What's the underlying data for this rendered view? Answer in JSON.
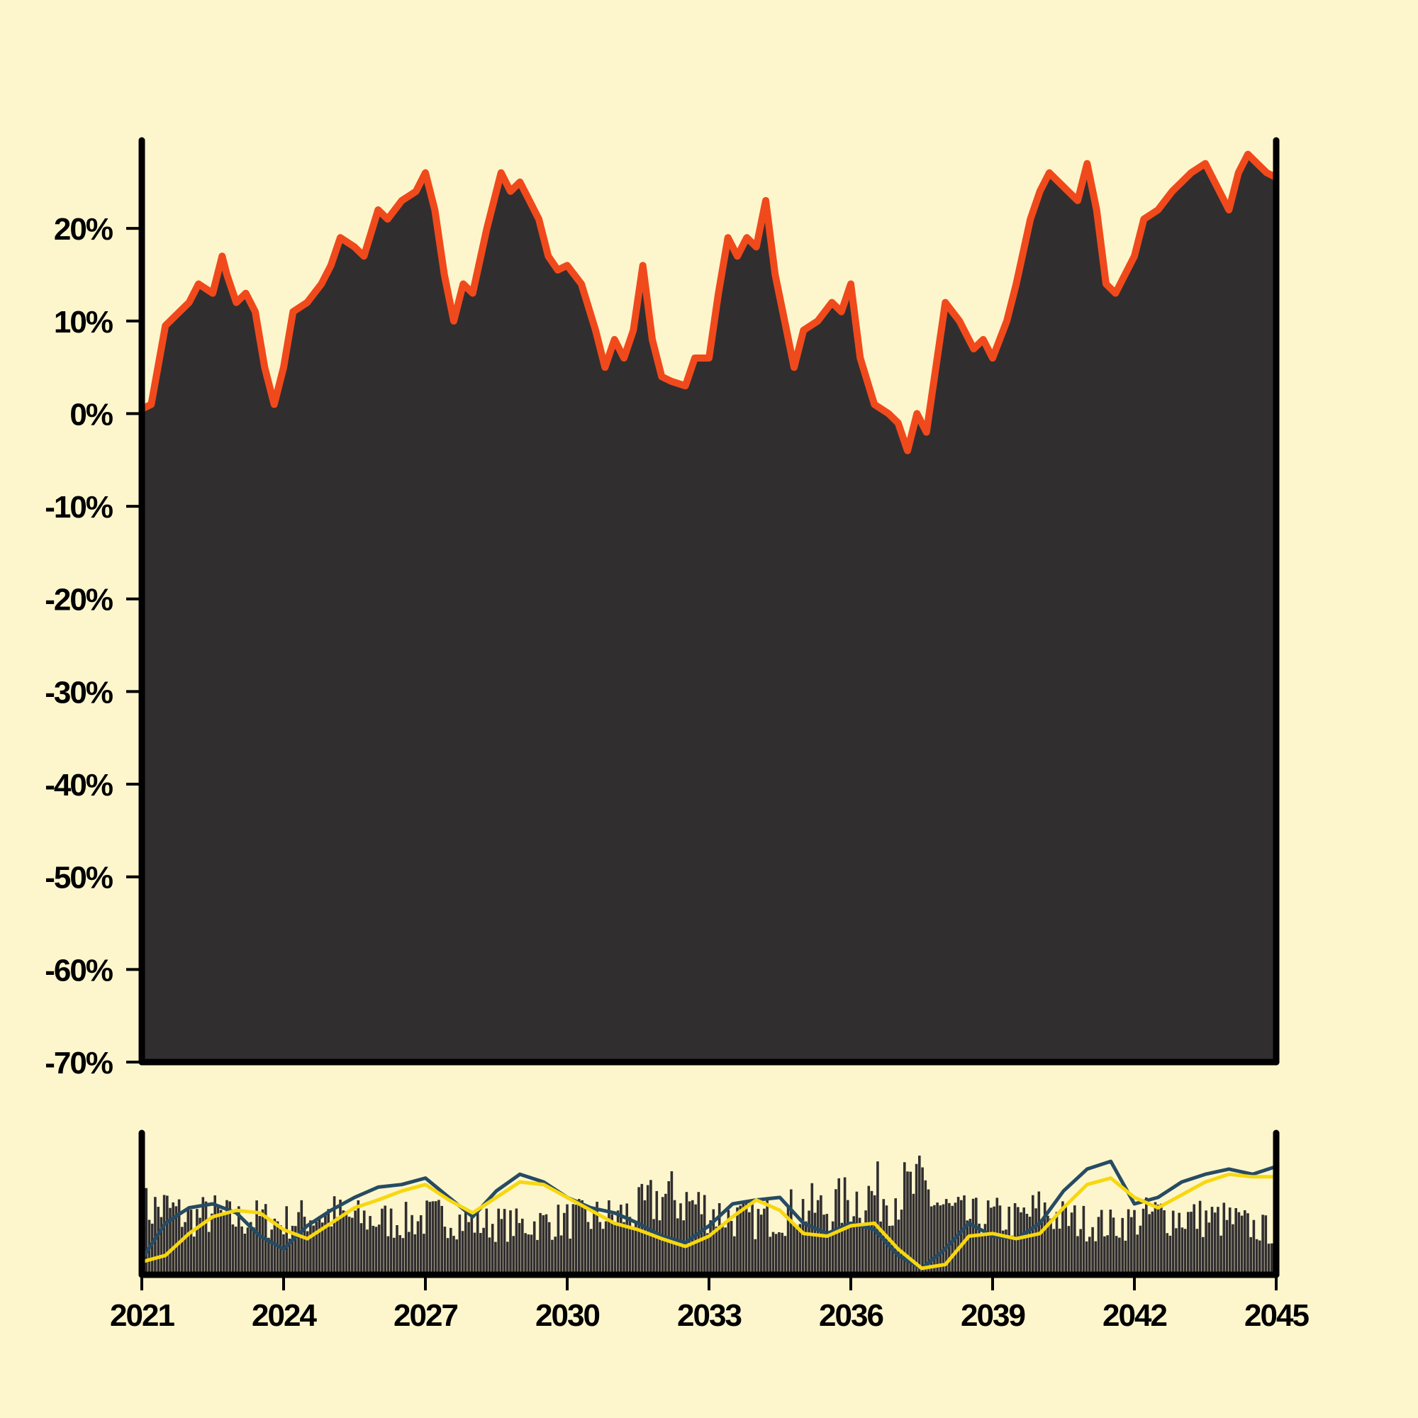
{
  "colors": {
    "background": "#fdf6cc",
    "area_fill": "#312e30",
    "area_edge": "#f04a1c",
    "axis": "#000000",
    "volume_bars": "#312e30",
    "line_fast": "#264b63",
    "line_slow": "#f7d711"
  },
  "chart_data": [
    {
      "type": "area",
      "title": "",
      "xlabel": "",
      "ylabel": "",
      "x_range": [
        2021,
        2045
      ],
      "ylim": [
        -70,
        29.5
      ],
      "y_ticks": [
        -70,
        -60,
        -50,
        -40,
        -30,
        -20,
        -10,
        0,
        10,
        20
      ],
      "y_tick_labels": [
        "-70%",
        "-60%",
        "-50%",
        "-40%",
        "-30%",
        "-20%",
        "-10%",
        "0%",
        "10%",
        "20%"
      ],
      "grid": false,
      "series": [
        {
          "x": [
            2021.0,
            2021.2,
            2021.5,
            2021.8,
            2022.0,
            2022.2,
            2022.5,
            2022.7,
            2022.8,
            2023.0,
            2023.2,
            2023.4,
            2023.6,
            2023.8,
            2024.0,
            2024.2,
            2024.5,
            2024.8,
            2025.0,
            2025.2,
            2025.5,
            2025.7,
            2026.0,
            2026.2,
            2026.5,
            2026.8,
            2027.0,
            2027.2,
            2027.4,
            2027.6,
            2027.8,
            2028.0,
            2028.3,
            2028.6,
            2028.8,
            2029.0,
            2029.2,
            2029.4,
            2029.6,
            2029.8,
            2030.0,
            2030.3,
            2030.6,
            2030.8,
            2031.0,
            2031.2,
            2031.4,
            2031.6,
            2031.8,
            2032.0,
            2032.2,
            2032.5,
            2032.7,
            2033.0,
            2033.2,
            2033.4,
            2033.6,
            2033.8,
            2034.0,
            2034.2,
            2034.4,
            2034.6,
            2034.8,
            2035.0,
            2035.3,
            2035.6,
            2035.8,
            2036.0,
            2036.2,
            2036.5,
            2036.8,
            2037.0,
            2037.2,
            2037.4,
            2037.6,
            2037.8,
            2038.0,
            2038.3,
            2038.6,
            2038.8,
            2039.0,
            2039.3,
            2039.5,
            2039.8,
            2040.0,
            2040.2,
            2040.4,
            2040.6,
            2040.8,
            2041.0,
            2041.2,
            2041.4,
            2041.6,
            2041.8,
            2042.0,
            2042.2,
            2042.5,
            2042.8,
            2043.0,
            2043.2,
            2043.5,
            2043.8,
            2044.0,
            2044.2,
            2044.4,
            2044.6,
            2044.8,
            2045.0
          ],
          "values": [
            0.5,
            1,
            9.5,
            11,
            12,
            14,
            13,
            17,
            15,
            12,
            13,
            11,
            5,
            1,
            5,
            11,
            12,
            14,
            16,
            19,
            18,
            17,
            22,
            21,
            23,
            24,
            26,
            22,
            15,
            10,
            14,
            13,
            20,
            26,
            24,
            25,
            23,
            21,
            17,
            15.5,
            16,
            14,
            9,
            5,
            8,
            6,
            9,
            16,
            8,
            4,
            3.5,
            3,
            6,
            6,
            13,
            19,
            17,
            19,
            18,
            23,
            15,
            10,
            5,
            9,
            10,
            12,
            11,
            14,
            6,
            1,
            0,
            -1,
            -4,
            0,
            -2,
            5,
            12,
            10,
            7,
            8,
            6,
            10,
            14,
            21,
            24,
            26,
            25,
            24,
            23,
            27,
            22,
            14,
            13,
            15,
            17,
            21,
            22,
            24,
            25,
            26,
            27,
            24,
            22,
            26,
            28,
            27,
            26,
            25.5
          ]
        }
      ]
    },
    {
      "type": "bar",
      "title": "",
      "x_range": [
        2021,
        2045
      ],
      "x_ticks": [
        2021,
        2024,
        2027,
        2030,
        2033,
        2036,
        2039,
        2042,
        2045
      ],
      "x_tick_labels": [
        "2021",
        "2024",
        "2027",
        "2030",
        "2033",
        "2036",
        "2039",
        "2042",
        "2045"
      ],
      "grid": false,
      "bars": {
        "x": [
          2021.0,
          2021.5,
          2022.0,
          2022.5,
          2023.0,
          2023.5,
          2024.0,
          2024.5,
          2025.0,
          2025.5,
          2026.0,
          2026.5,
          2027.0,
          2027.5,
          2028.0,
          2028.5,
          2029.0,
          2029.5,
          2030.0,
          2030.5,
          2031.0,
          2031.5,
          2032.0,
          2032.5,
          2033.0,
          2033.5,
          2034.0,
          2034.5,
          2035.0,
          2035.5,
          2036.0,
          2036.5,
          2037.0,
          2037.5,
          2038.0,
          2038.5,
          2039.0,
          2039.5,
          2040.0,
          2040.5,
          2041.0,
          2041.5,
          2042.0,
          2042.5,
          2043.0,
          2043.5,
          2044.0,
          2044.5,
          2045.0
        ],
        "values": [
          0.6,
          0.62,
          0.5,
          0.55,
          0.48,
          0.5,
          0.45,
          0.52,
          0.55,
          0.5,
          0.48,
          0.46,
          0.5,
          0.52,
          0.45,
          0.44,
          0.42,
          0.45,
          0.48,
          0.5,
          0.52,
          0.58,
          0.75,
          0.7,
          0.6,
          0.5,
          0.48,
          0.55,
          0.62,
          0.6,
          0.72,
          0.78,
          0.8,
          0.85,
          0.6,
          0.5,
          0.52,
          0.48,
          0.6,
          0.5,
          0.45,
          0.42,
          0.48,
          0.55,
          0.52,
          0.5,
          0.48,
          0.4,
          0.35
        ]
      },
      "series": [
        {
          "x": [
            2021.0,
            2021.5,
            2022.0,
            2022.5,
            2023.0,
            2023.5,
            2024.0,
            2024.5,
            2025.0,
            2025.5,
            2026.0,
            2026.5,
            2027.0,
            2027.5,
            2028.0,
            2028.5,
            2029.0,
            2029.5,
            2030.0,
            2030.5,
            2031.0,
            2031.5,
            2032.0,
            2032.5,
            2033.0,
            2033.5,
            2034.0,
            2034.5,
            2035.0,
            2035.5,
            2036.0,
            2036.5,
            2037.0,
            2037.5,
            2038.0,
            2038.5,
            2039.0,
            2039.5,
            2040.0,
            2040.5,
            2041.0,
            2041.5,
            2042.0,
            2042.5,
            2043.0,
            2043.5,
            2044.0,
            2044.5,
            2045.0
          ],
          "values": [
            0.02,
            0.3,
            0.42,
            0.45,
            0.38,
            0.2,
            0.1,
            0.28,
            0.4,
            0.5,
            0.58,
            0.6,
            0.65,
            0.5,
            0.35,
            0.55,
            0.68,
            0.62,
            0.5,
            0.42,
            0.38,
            0.3,
            0.2,
            0.15,
            0.28,
            0.45,
            0.48,
            0.5,
            0.3,
            0.22,
            0.3,
            0.25,
            0.05,
            -0.05,
            0.1,
            0.3,
            0.2,
            0.18,
            0.3,
            0.55,
            0.72,
            0.78,
            0.45,
            0.5,
            0.62,
            0.68,
            0.72,
            0.68,
            0.74
          ]
        },
        {
          "x": [
            2021.0,
            2021.5,
            2022.0,
            2022.5,
            2023.0,
            2023.5,
            2024.0,
            2024.5,
            2025.0,
            2025.5,
            2026.0,
            2026.5,
            2027.0,
            2027.5,
            2028.0,
            2028.5,
            2029.0,
            2029.5,
            2030.0,
            2030.5,
            2031.0,
            2031.5,
            2032.0,
            2032.5,
            2033.0,
            2033.5,
            2034.0,
            2034.5,
            2035.0,
            2035.5,
            2036.0,
            2036.5,
            2037.0,
            2037.5,
            2038.0,
            2038.5,
            2039.0,
            2039.5,
            2040.0,
            2040.5,
            2041.0,
            2041.5,
            2042.0,
            2042.5,
            2043.0,
            2043.5,
            2044.0,
            2044.5,
            2045.0
          ],
          "values": [
            0.0,
            0.05,
            0.22,
            0.35,
            0.4,
            0.38,
            0.25,
            0.18,
            0.3,
            0.42,
            0.48,
            0.55,
            0.6,
            0.48,
            0.38,
            0.5,
            0.62,
            0.6,
            0.5,
            0.4,
            0.3,
            0.25,
            0.18,
            0.12,
            0.2,
            0.35,
            0.48,
            0.4,
            0.22,
            0.2,
            0.28,
            0.3,
            0.1,
            -0.05,
            -0.02,
            0.2,
            0.22,
            0.18,
            0.22,
            0.42,
            0.6,
            0.65,
            0.5,
            0.42,
            0.52,
            0.62,
            0.68,
            0.66,
            0.66
          ]
        }
      ]
    }
  ]
}
